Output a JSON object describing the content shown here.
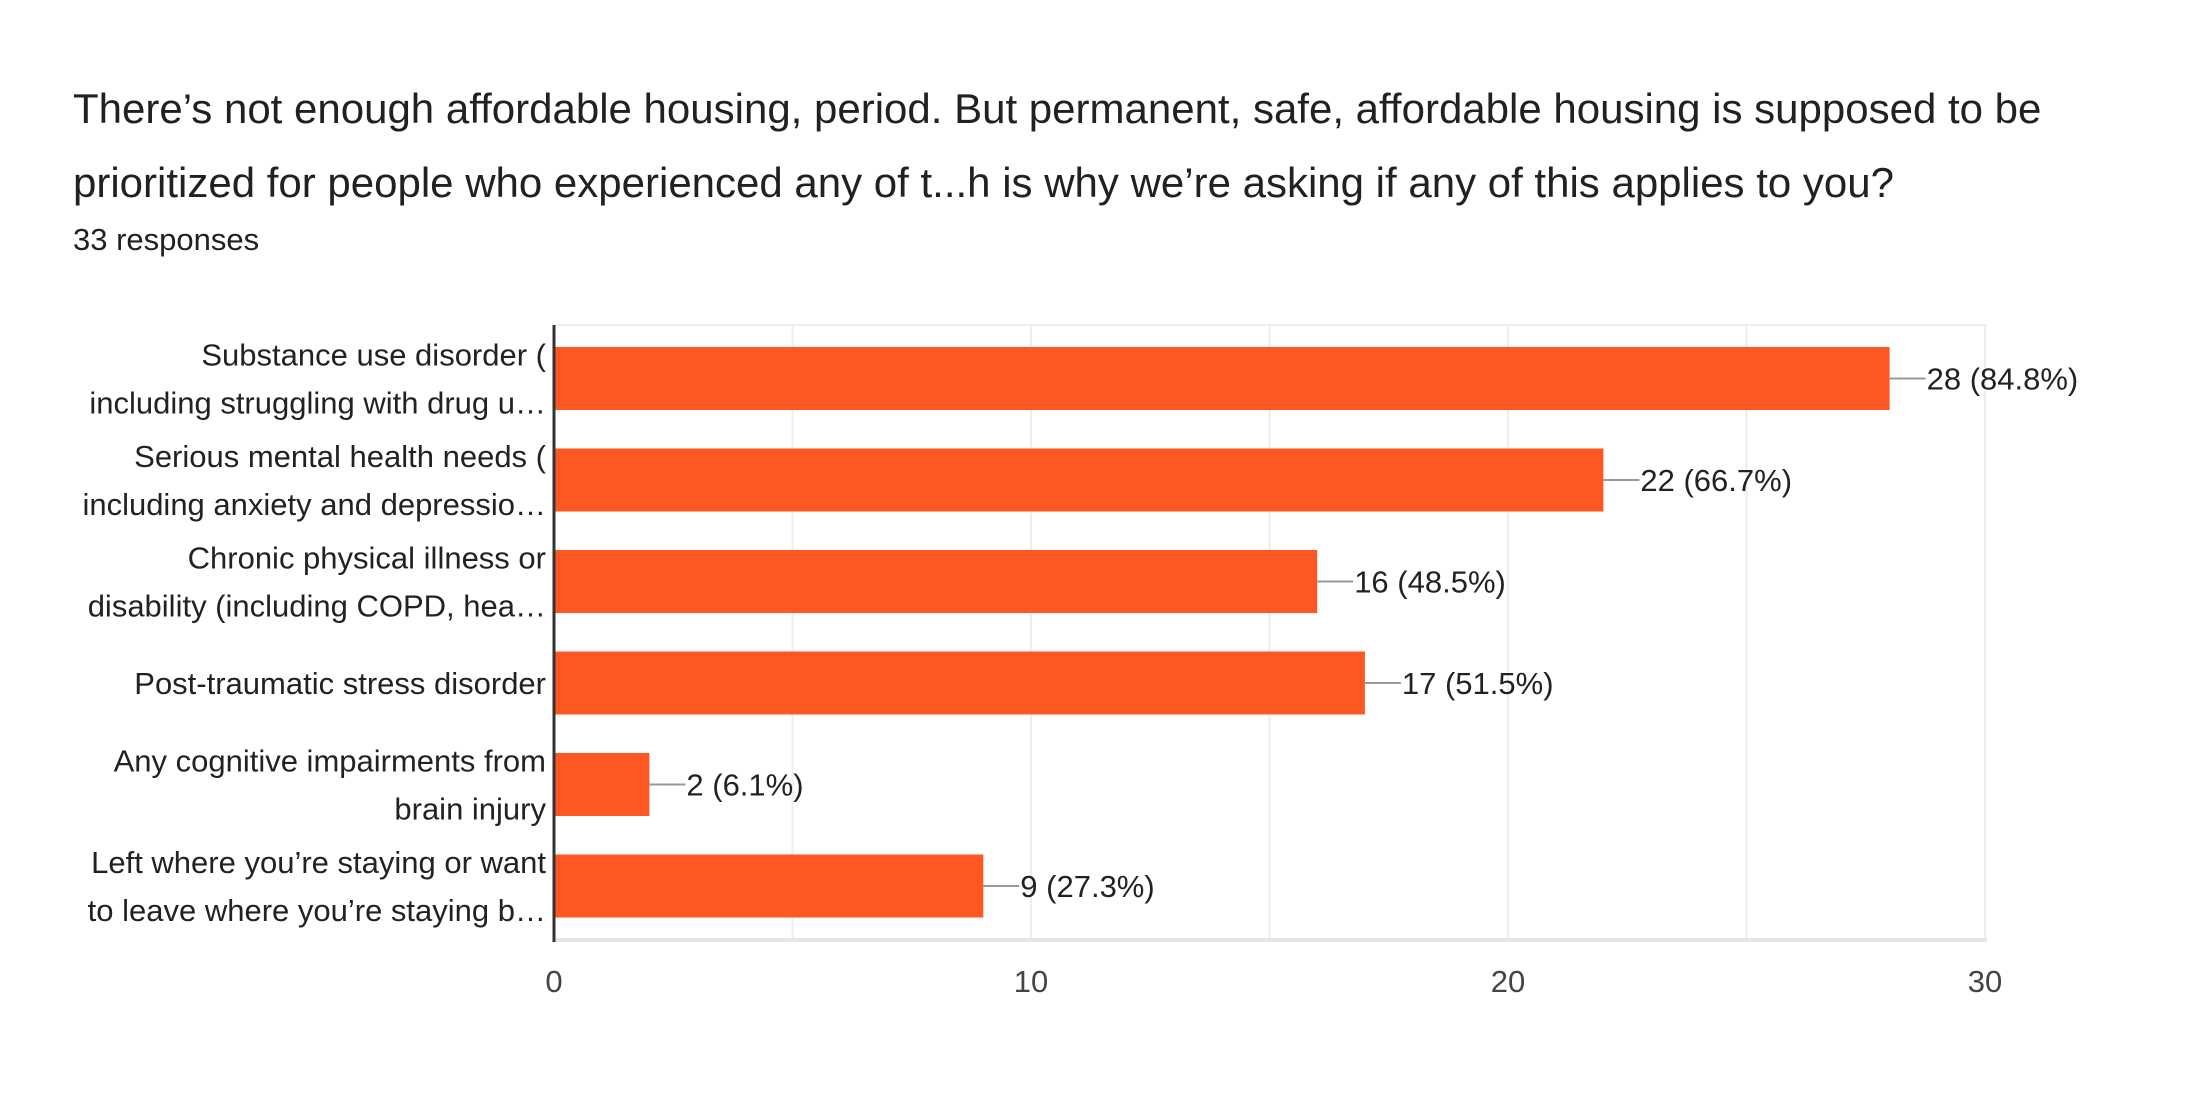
{
  "question": {
    "title": "There’s not enough affordable housing, period. But permanent, safe, affordable housing is supposed to be prioritized for people who experienced any of t...h is why we’re asking if any of this applies to you?",
    "responses": "33 responses"
  },
  "colors": {
    "bar": "#ff5722",
    "grid": "#eeeeee",
    "axis": "#333333",
    "leader": "#999999"
  },
  "chart_data": {
    "type": "bar",
    "orientation": "horizontal",
    "categories": [
      [
        "Substance use disorder (",
        "including struggling with drug u…"
      ],
      [
        "Serious mental health needs (",
        "including anxiety and depressio…"
      ],
      [
        "Chronic physical illness or",
        "disability (including COPD, hea…"
      ],
      [
        "Post-traumatic stress disorder"
      ],
      [
        "Any cognitive impairments from",
        "brain injury"
      ],
      [
        "Left where you’re staying or want",
        "to leave where you’re staying b…"
      ]
    ],
    "values": [
      28,
      22,
      16,
      17,
      2,
      9
    ],
    "data_labels": [
      "28 (84.8%)",
      "22 (66.7%)",
      "16 (48.5%)",
      "17 (51.5%)",
      "2 (6.1%)",
      "9 (27.3%)"
    ],
    "xlim": [
      0,
      30
    ],
    "xticks": [
      "0",
      "10",
      "20",
      "30"
    ],
    "minor_gridlines": [
      5,
      15,
      25
    ],
    "grid": true,
    "legend": "none"
  }
}
